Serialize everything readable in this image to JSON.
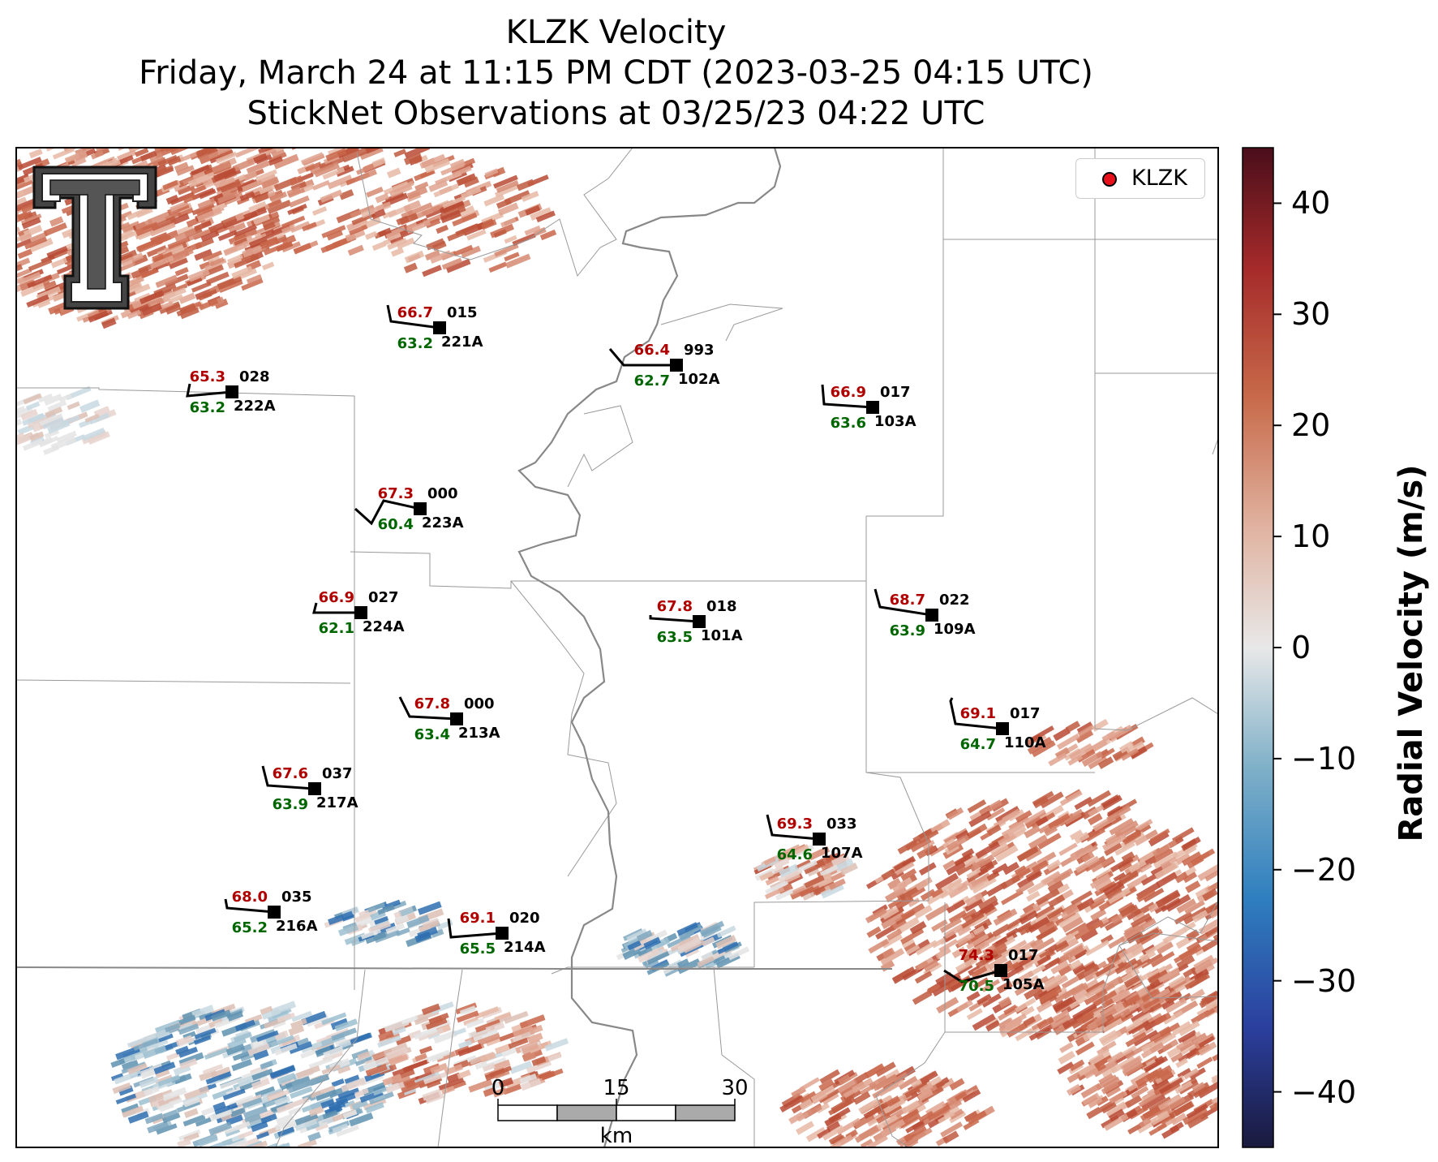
{
  "title": {
    "line1": "KLZK Velocity",
    "line2": "Friday, March 24 at 11:15 PM CDT (2023-03-25 04:15 UTC)",
    "line3": "StickNet Observations at 03/25/23 04:22 UTC"
  },
  "legend": {
    "label": "KLZK",
    "marker_color": "#e8111b"
  },
  "colorbar": {
    "label": "Radial Velocity (m/s)",
    "range": [
      -45,
      45
    ],
    "ticks": [
      "40",
      "30",
      "20",
      "10",
      "0",
      "−10",
      "−20",
      "−30",
      "−40"
    ],
    "colors": [
      "#1a1a3d",
      "#2b3f9e",
      "#2f7fbf",
      "#7fb0c8",
      "#e8e8e8",
      "#e0b3a0",
      "#c86a4a",
      "#a52a2a",
      "#4a0e1a"
    ]
  },
  "scale_bar": {
    "labels": [
      "0",
      "15",
      "30"
    ],
    "unit": "km"
  },
  "stations": [
    {
      "id": "221A",
      "temp": "66.7",
      "dew": "63.2",
      "pres": "015"
    },
    {
      "id": "222A",
      "temp": "65.3",
      "dew": "63.2",
      "pres": "028"
    },
    {
      "id": "102A",
      "temp": "66.4",
      "dew": "62.7",
      "pres": "993"
    },
    {
      "id": "103A",
      "temp": "66.9",
      "dew": "63.6",
      "pres": "017"
    },
    {
      "id": "223A",
      "temp": "67.3",
      "dew": "60.4",
      "pres": "000"
    },
    {
      "id": "224A",
      "temp": "66.9",
      "dew": "62.1",
      "pres": "027"
    },
    {
      "id": "101A",
      "temp": "67.8",
      "dew": "63.5",
      "pres": "018"
    },
    {
      "id": "109A",
      "temp": "68.7",
      "dew": "63.9",
      "pres": "022"
    },
    {
      "id": "213A",
      "temp": "67.8",
      "dew": "63.4",
      "pres": "000"
    },
    {
      "id": "110A",
      "temp": "69.1",
      "dew": "64.7",
      "pres": "017"
    },
    {
      "id": "217A",
      "temp": "67.6",
      "dew": "63.9",
      "pres": "037"
    },
    {
      "id": "107A",
      "temp": "69.3",
      "dew": "64.6",
      "pres": "033"
    },
    {
      "id": "216A",
      "temp": "68.0",
      "dew": "65.2",
      "pres": "035"
    },
    {
      "id": "214A",
      "temp": "69.1",
      "dew": "65.5",
      "pres": "020"
    },
    {
      "id": "105A",
      "temp": "74.3",
      "dew": "70.5",
      "pres": "017"
    }
  ],
  "colors": {
    "temp": "#b00000",
    "dew": "#006600",
    "station": "#000000",
    "river": "#888888",
    "county": "#999999"
  }
}
